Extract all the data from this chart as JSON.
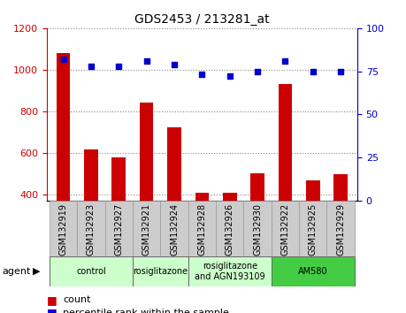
{
  "title": "GDS2453 / 213281_at",
  "samples": [
    "GSM132919",
    "GSM132923",
    "GSM132927",
    "GSM132921",
    "GSM132924",
    "GSM132928",
    "GSM132926",
    "GSM132930",
    "GSM132922",
    "GSM132925",
    "GSM132929"
  ],
  "counts": [
    1080,
    615,
    575,
    840,
    720,
    408,
    408,
    500,
    930,
    465,
    495
  ],
  "percentiles": [
    82,
    78,
    78,
    81,
    79,
    73,
    72,
    75,
    81,
    75,
    75
  ],
  "bar_color": "#cc0000",
  "dot_color": "#0000cc",
  "ylim_left": [
    370,
    1200
  ],
  "ylim_right": [
    0,
    100
  ],
  "yticks_left": [
    400,
    600,
    800,
    1000,
    1200
  ],
  "yticks_right": [
    0,
    25,
    50,
    75,
    100
  ],
  "groups": [
    {
      "label": "control",
      "span": [
        0,
        3
      ],
      "color": "#ccffcc"
    },
    {
      "label": "rosiglitazone",
      "span": [
        3,
        5
      ],
      "color": "#ccffcc"
    },
    {
      "label": "rosiglitazone\nand AGN193109",
      "span": [
        5,
        8
      ],
      "color": "#ccffcc"
    },
    {
      "label": "AM580",
      "span": [
        8,
        11
      ],
      "color": "#44cc44"
    }
  ],
  "agent_label": "agent",
  "legend_count": "count",
  "legend_pct": "percentile rank within the sample",
  "grid_color": "#888888",
  "bg_color": "#ffffff",
  "tick_label_color_left": "#cc0000",
  "tick_label_color_right": "#0000cc",
  "xticklabel_bg": "#cccccc",
  "xticklabel_border": "#999999"
}
